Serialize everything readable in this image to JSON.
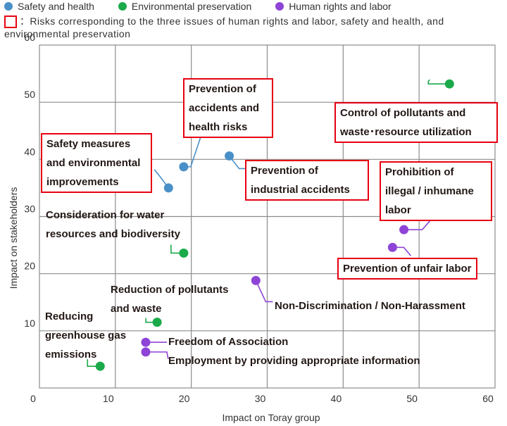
{
  "legend": {
    "items": [
      {
        "label": "Safety and health",
        "color": "#4a90c8"
      },
      {
        "label": "Environmental preservation",
        "color": "#1aaa4a"
      },
      {
        "label": "Human rights and labor",
        "color": "#8e44d6"
      }
    ],
    "box_note": "：Risks corresponding to the three issues of human rights and labor, safety and health, and environmental preservation"
  },
  "chart_data": {
    "type": "scatter",
    "title": "",
    "xlabel": "Impact on Toray group",
    "ylabel": "Impact on stakeholders",
    "xlim": [
      0,
      60
    ],
    "ylim": [
      0,
      60
    ],
    "xticks": [
      0,
      10,
      20,
      30,
      40,
      50,
      60
    ],
    "yticks": [
      10,
      20,
      30,
      40,
      50,
      60
    ],
    "grid": true,
    "series": [
      {
        "name": "Safety and health",
        "color": "#4a90c8",
        "points": [
          {
            "x": 17,
            "y": 35,
            "label": "Safety measures and environmental improvements",
            "boxed": true
          },
          {
            "x": 19,
            "y": 38.7,
            "label": "Prevention of accidents and health risks",
            "boxed": true
          },
          {
            "x": 25,
            "y": 40.6,
            "label": "Prevention of industrial accidents",
            "boxed": true
          }
        ]
      },
      {
        "name": "Environmental preservation",
        "color": "#1aaa4a",
        "points": [
          {
            "x": 54,
            "y": 53.2,
            "label": "Control of pollutants and waste･resource utilization",
            "boxed": true
          },
          {
            "x": 19,
            "y": 23.6,
            "label": "Consideration for water resources and biodiversity",
            "boxed": false
          },
          {
            "x": 15.5,
            "y": 11.5,
            "label": "Reduction of pollutants and waste",
            "boxed": false
          },
          {
            "x": 8,
            "y": 3.8,
            "label": "Reducing greenhouse gas emissions",
            "boxed": false
          }
        ]
      },
      {
        "name": "Human rights and labor",
        "color": "#8e44d6",
        "points": [
          {
            "x": 48,
            "y": 27.7,
            "label": "Prohibition of illegal / inhumane labor",
            "boxed": true
          },
          {
            "x": 46.5,
            "y": 24.6,
            "label": "Prevention of unfair labor",
            "boxed": true
          },
          {
            "x": 28.5,
            "y": 18.8,
            "label": "Non-Discrimination / Non-Harassment",
            "boxed": false
          },
          {
            "x": 14,
            "y": 8,
            "label": "Freedom of Association",
            "boxed": false
          },
          {
            "x": 14,
            "y": 6.3,
            "label": "Employment by providing appropriate information",
            "boxed": false
          }
        ]
      }
    ]
  }
}
